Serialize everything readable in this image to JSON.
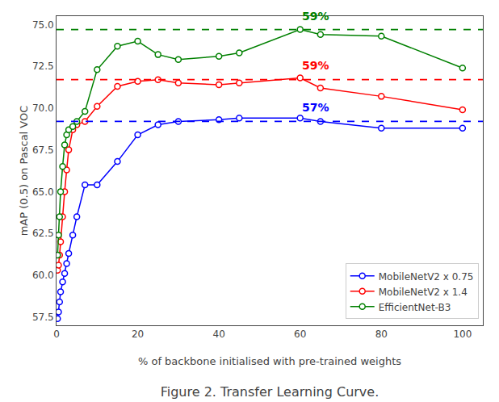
{
  "chart_data": {
    "type": "line",
    "title": "Figure 2. Transfer Learning Curve.",
    "x_label": "% of backbone initialised with pre-trained weights",
    "y_label": "mAP (0.5) on Pascal VOC",
    "x": [
      0.25,
      0.5,
      0.75,
      1.0,
      1.5,
      2.0,
      2.5,
      3.0,
      4.0,
      5.0,
      7.0,
      10.0,
      15.0,
      20.0,
      25.0,
      30.0,
      40.0,
      45.0,
      60.0,
      65.0,
      80.0,
      100.0
    ],
    "series": [
      {
        "name": "MobileNetV2 x 0.75",
        "color": "blue",
        "marker": "open_circle",
        "values": [
          57.4,
          57.8,
          58.4,
          59.0,
          59.6,
          60.1,
          60.7,
          61.3,
          62.4,
          63.5,
          65.4,
          65.4,
          66.8,
          68.4,
          69.0,
          69.2,
          69.3,
          69.4,
          69.4,
          69.2,
          68.8,
          68.8
        ]
      },
      {
        "name": "MobileNetV2 x 1.4",
        "color": "red",
        "marker": "open_circle",
        "values": [
          60.3,
          60.6,
          61.2,
          62.0,
          63.5,
          65.0,
          66.3,
          67.5,
          68.7,
          69.0,
          69.2,
          70.1,
          71.3,
          71.6,
          71.7,
          71.5,
          71.4,
          71.5,
          71.8,
          71.2,
          70.7,
          69.9
        ]
      },
      {
        "name": "EfficientNet-B3",
        "color": "green",
        "marker": "open_circle",
        "values": [
          61.2,
          62.4,
          63.5,
          65.0,
          66.5,
          67.8,
          68.4,
          68.7,
          68.9,
          69.2,
          69.8,
          72.3,
          73.7,
          74.0,
          73.2,
          72.9,
          73.1,
          73.3,
          74.7,
          74.4,
          74.3,
          72.4
        ]
      }
    ],
    "hlines": [
      {
        "y": 69.2,
        "color": "blue",
        "line_style": "dashed"
      },
      {
        "y": 71.7,
        "color": "red",
        "line_style": "dashed"
      },
      {
        "y": 74.7,
        "color": "green",
        "line_style": "dashed"
      }
    ],
    "annotations": [
      {
        "text": "57%",
        "x": 60,
        "y": 69.55,
        "color": "blue"
      },
      {
        "text": "59%",
        "x": 60,
        "y": 72.05,
        "color": "red"
      },
      {
        "text": "59%",
        "x": 60,
        "y": 75.0,
        "color": "green"
      }
    ],
    "xlim": [
      0,
      105
    ],
    "xticks": [
      0,
      20,
      40,
      60,
      80,
      100
    ],
    "ylim": [
      57.0,
      75.5
    ],
    "yticks": [
      57.5,
      {
        "value": 60,
        "label": "60.0"
      },
      62.5,
      {
        "value": 65,
        "label": "65.0"
      },
      67.5,
      {
        "value": 70,
        "label": "70.0"
      },
      72.5,
      {
        "value": 75,
        "label": "75.0"
      }
    ],
    "grid": false,
    "legend": "lower right"
  }
}
